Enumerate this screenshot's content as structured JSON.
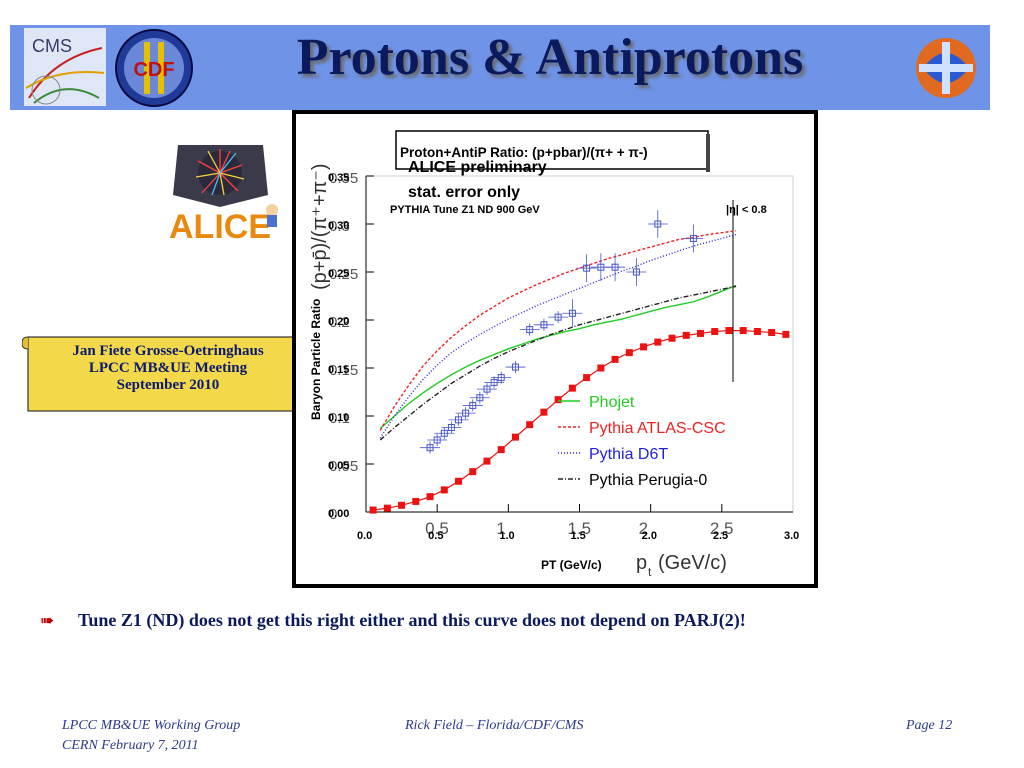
{
  "slide": {
    "title": "Protons & Antiprotons",
    "scroll": [
      "Jan Fiete Grosse-Oetringhaus",
      "LPCC MB&UE Meeting",
      "September 2010"
    ],
    "bullet": "Tune Z1 (ND) does not get this right either and this curve does not depend on PARJ(2)!",
    "footer": {
      "left1": "LPCC MB&UE Working Group",
      "left2": "CERN February 7, 2011",
      "center": "Rick Field – Florida/CDF/CMS",
      "right": "Page 12"
    },
    "logos": {
      "cms": "CMS",
      "cdf": "CDF",
      "alice": "ALICE"
    }
  },
  "chart_data": {
    "type": "line",
    "header_box": "Proton+AntiP Ratio: (p+pbar)/(π+ + π-)",
    "annotations": [
      "ALICE preliminary",
      "stat. error only",
      "PYTHIA Tune Z1 ND 900 GeV",
      "|η| < 0.8"
    ],
    "ylabel_overlay": "Baryon Particle Ratio",
    "ylabel_original": "(p+p̄)/(π⁺+π⁻)",
    "xlabel_overlay": "PT (GeV/c)",
    "xlabel_original_main": "p",
    "xlabel_original_sub": "t",
    "xlabel_original_unit": "(GeV/c)",
    "xlim": [
      0.0,
      3.0
    ],
    "ylim": [
      0.0,
      0.35
    ],
    "overlay_yticks": [
      "0.00",
      "0.05",
      "0.10",
      "0.15",
      "0.20",
      "0.25",
      "0.30",
      "0.35"
    ],
    "overlay_xticks": [
      "0.0",
      "0.5",
      "1.0",
      "1.5",
      "2.0",
      "2.5",
      "3.0"
    ],
    "original_yticks": [
      "0",
      "0.05",
      "0.1",
      "0.15",
      "0.2",
      "0.25",
      "0.3",
      "0.35"
    ],
    "original_xticks": [
      "0.5",
      "1",
      "1.5",
      "2",
      "2.5"
    ],
    "legend": [
      {
        "name": "Phojet",
        "color": "#22cc22",
        "dash": ""
      },
      {
        "name": "Pythia ATLAS-CSC",
        "color": "#ee2222",
        "dash": "3,2"
      },
      {
        "name": "Pythia D6T",
        "color": "#2222dd",
        "dash": "1,2"
      },
      {
        "name": "Pythia Perugia-0",
        "color": "#222222",
        "dash": "5,2,1,2"
      }
    ],
    "series": [
      {
        "name": "PYTHIA Tune Z1 ND 900 GeV",
        "color": "#ee1111",
        "marker": "square",
        "x": [
          0.05,
          0.15,
          0.25,
          0.35,
          0.45,
          0.55,
          0.65,
          0.75,
          0.85,
          0.95,
          1.05,
          1.15,
          1.25,
          1.35,
          1.45,
          1.55,
          1.65,
          1.75,
          1.85,
          1.95,
          2.05,
          2.15,
          2.25,
          2.35,
          2.45,
          2.55,
          2.65,
          2.75,
          2.85,
          2.95
        ],
        "y": [
          0.002,
          0.004,
          0.007,
          0.011,
          0.016,
          0.023,
          0.032,
          0.042,
          0.053,
          0.065,
          0.078,
          0.091,
          0.104,
          0.117,
          0.129,
          0.14,
          0.15,
          0.159,
          0.166,
          0.172,
          0.177,
          0.181,
          0.184,
          0.186,
          0.188,
          0.189,
          0.189,
          0.188,
          0.187,
          0.185
        ]
      },
      {
        "name": "Phojet",
        "color": "#22cc22",
        "dash": "",
        "x": [
          0.1,
          0.2,
          0.3,
          0.4,
          0.5,
          0.6,
          0.7,
          0.8,
          0.9,
          1.0,
          1.1,
          1.2,
          1.3,
          1.4,
          1.5,
          1.6,
          1.7,
          1.8,
          1.9,
          2.0,
          2.1,
          2.2,
          2.3,
          2.4,
          2.5,
          2.6
        ],
        "y": [
          0.087,
          0.1,
          0.113,
          0.124,
          0.134,
          0.143,
          0.151,
          0.158,
          0.164,
          0.17,
          0.175,
          0.18,
          0.184,
          0.188,
          0.191,
          0.195,
          0.198,
          0.201,
          0.205,
          0.209,
          0.213,
          0.216,
          0.219,
          0.224,
          0.23,
          0.236
        ]
      },
      {
        "name": "Pythia ATLAS-CSC",
        "color": "#ee2222",
        "dash": "3,2",
        "x": [
          0.1,
          0.2,
          0.3,
          0.4,
          0.5,
          0.6,
          0.7,
          0.8,
          0.9,
          1.0,
          1.1,
          1.2,
          1.3,
          1.4,
          1.5,
          1.6,
          1.7,
          1.8,
          1.9,
          2.0,
          2.1,
          2.2,
          2.3,
          2.4,
          2.5,
          2.6
        ],
        "y": [
          0.085,
          0.11,
          0.132,
          0.152,
          0.168,
          0.182,
          0.194,
          0.205,
          0.214,
          0.223,
          0.23,
          0.237,
          0.243,
          0.249,
          0.254,
          0.259,
          0.264,
          0.268,
          0.272,
          0.276,
          0.28,
          0.284,
          0.286,
          0.289,
          0.291,
          0.293
        ]
      },
      {
        "name": "Pythia D6T",
        "color": "#2222dd",
        "dash": "1,2",
        "x": [
          0.1,
          0.2,
          0.3,
          0.4,
          0.5,
          0.6,
          0.7,
          0.8,
          0.9,
          1.0,
          1.1,
          1.2,
          1.3,
          1.4,
          1.5,
          1.6,
          1.7,
          1.8,
          1.9,
          2.0,
          2.1,
          2.2,
          2.3,
          2.4,
          2.5,
          2.6
        ],
        "y": [
          0.077,
          0.1,
          0.12,
          0.138,
          0.153,
          0.166,
          0.176,
          0.185,
          0.193,
          0.201,
          0.208,
          0.215,
          0.221,
          0.227,
          0.233,
          0.239,
          0.245,
          0.251,
          0.256,
          0.262,
          0.267,
          0.272,
          0.277,
          0.281,
          0.285,
          0.289
        ]
      },
      {
        "name": "Pythia Perugia-0",
        "color": "#222222",
        "dash": "5,2,1,2",
        "x": [
          0.1,
          0.2,
          0.3,
          0.4,
          0.5,
          0.6,
          0.7,
          0.8,
          0.9,
          1.0,
          1.1,
          1.2,
          1.3,
          1.4,
          1.5,
          1.6,
          1.7,
          1.8,
          1.9,
          2.0,
          2.1,
          2.2,
          2.3,
          2.4,
          2.5,
          2.6
        ],
        "y": [
          0.075,
          0.088,
          0.1,
          0.112,
          0.123,
          0.134,
          0.143,
          0.152,
          0.16,
          0.167,
          0.173,
          0.179,
          0.185,
          0.19,
          0.195,
          0.199,
          0.203,
          0.207,
          0.211,
          0.215,
          0.219,
          0.223,
          0.226,
          0.229,
          0.232,
          0.235
        ]
      },
      {
        "name": "ALICE preliminary",
        "color": "#4455cc",
        "marker": "open-square",
        "x": [
          0.45,
          0.5,
          0.55,
          0.6,
          0.65,
          0.7,
          0.75,
          0.8,
          0.85,
          0.9,
          0.95,
          1.05,
          1.15,
          1.25,
          1.35,
          1.45,
          1.55,
          1.65,
          1.75,
          1.9,
          2.05,
          2.3
        ],
        "y": [
          0.067,
          0.075,
          0.082,
          0.088,
          0.096,
          0.103,
          0.111,
          0.119,
          0.128,
          0.135,
          0.14,
          0.151,
          0.19,
          0.195,
          0.203,
          0.207,
          0.254,
          0.255,
          0.255,
          0.25,
          0.3,
          0.285
        ]
      }
    ]
  }
}
